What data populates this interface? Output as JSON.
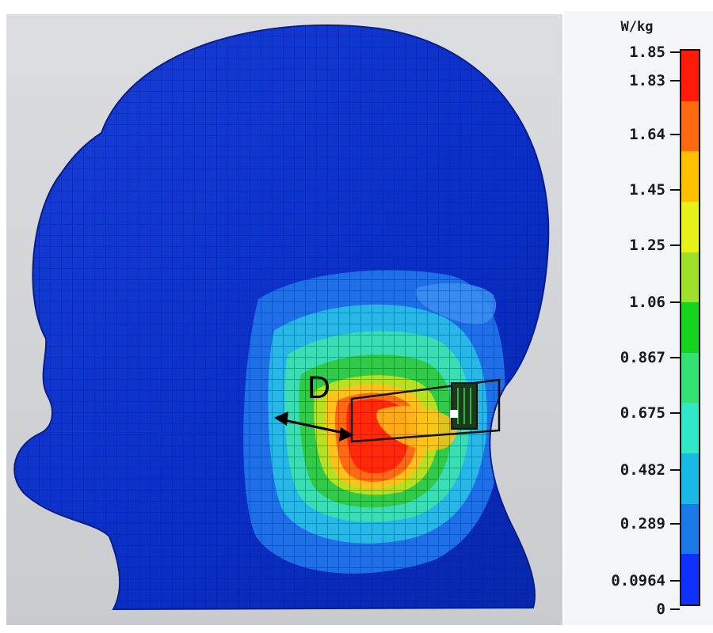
{
  "viewport": {
    "figure_label": "D",
    "background_color": "#d2d4d8",
    "head_color": "#0b2fc6",
    "hotspot_colors": [
      "#1f6fe6",
      "#29b7e8",
      "#3cdcb5",
      "#33c94a",
      "#b8e022",
      "#ffc21a",
      "#ff6a14",
      "#ff2a0a"
    ]
  },
  "legend": {
    "unit": "W/kg",
    "ticks": [
      "1.85",
      "1.83",
      "1.64",
      "1.45",
      "1.25",
      "1.06",
      "0.867",
      "0.675",
      "0.482",
      "0.289",
      "0.0964",
      "0"
    ],
    "bands": [
      "#ff1a0a",
      "#ff6a10",
      "#ffc000",
      "#e6f21a",
      "#9ee02a",
      "#14d41e",
      "#33e072",
      "#2ee8c8",
      "#19b9e6",
      "#1c79e8",
      "#1030ff"
    ]
  }
}
